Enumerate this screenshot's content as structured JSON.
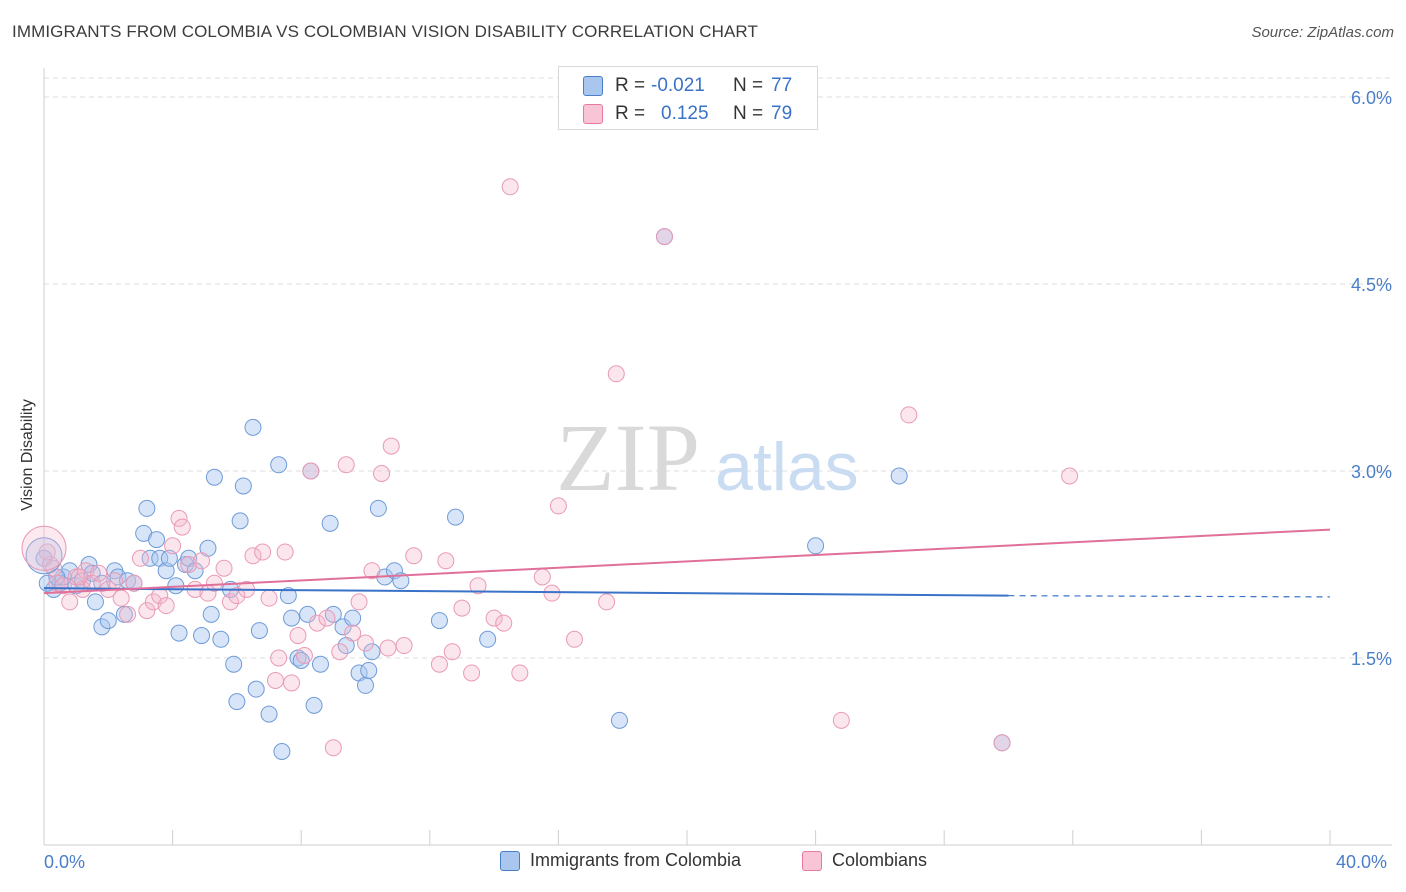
{
  "title": "IMMIGRANTS FROM COLOMBIA VS COLOMBIAN VISION DISABILITY CORRELATION CHART",
  "source": "Source: ZipAtlas.com",
  "watermark": {
    "zip": "ZIP",
    "atlas": "atlas"
  },
  "colors": {
    "blue": "#4a7ec9",
    "blue_fill": "#a9c6ef",
    "pink": "#e87aa0",
    "pink_fill": "#f4b8cc",
    "grid": "#dddddd"
  },
  "legend_top": {
    "rows": [
      {
        "r_label": "R =",
        "r_value": "-0.021",
        "n_label": "N =",
        "n_value": "77"
      },
      {
        "r_label": "R =",
        "r_value": "0.125",
        "n_label": "N =",
        "n_value": "79"
      }
    ]
  },
  "legend_bottom": {
    "series1": "Immigrants from Colombia",
    "series2": "Colombians"
  },
  "x_axis": {
    "min_label": "0.0%",
    "max_label": "40.0%"
  },
  "chart_data": {
    "type": "scatter",
    "title": "IMMIGRANTS FROM COLOMBIA VS COLOMBIAN VISION DISABILITY CORRELATION CHART",
    "xlabel": "",
    "ylabel": "Vision Disability",
    "xlim": [
      0,
      40
    ],
    "ylim": [
      0,
      6.2
    ],
    "y_ticks": [
      1.5,
      3.0,
      4.5,
      6.0
    ],
    "y_tick_labels": [
      "1.5%",
      "3.0%",
      "4.5%",
      "6.0%"
    ],
    "grid": true,
    "series": [
      {
        "name": "Immigrants from Colombia",
        "color": "#4a7ec9",
        "trend": {
          "x": [
            0,
            30
          ],
          "y": [
            2.06,
            2.0
          ],
          "dashed_to": 40,
          "dashed_y": 1.99
        },
        "points": [
          [
            0.3,
            2.05
          ],
          [
            0.5,
            2.1
          ],
          [
            0.6,
            2.15
          ],
          [
            0.8,
            2.2
          ],
          [
            1.0,
            2.08
          ],
          [
            1.2,
            2.12
          ],
          [
            1.4,
            2.25
          ],
          [
            1.5,
            2.18
          ],
          [
            1.6,
            1.95
          ],
          [
            1.8,
            2.1
          ],
          [
            1.8,
            1.75
          ],
          [
            2.0,
            1.8
          ],
          [
            2.2,
            2.2
          ],
          [
            2.3,
            2.15
          ],
          [
            2.5,
            1.85
          ],
          [
            2.6,
            2.12
          ],
          [
            2.8,
            2.1
          ],
          [
            3.1,
            2.5
          ],
          [
            3.2,
            2.7
          ],
          [
            3.3,
            2.3
          ],
          [
            3.5,
            2.45
          ],
          [
            3.6,
            2.3
          ],
          [
            3.8,
            2.2
          ],
          [
            3.9,
            2.3
          ],
          [
            4.1,
            2.08
          ],
          [
            4.2,
            1.7
          ],
          [
            4.4,
            2.25
          ],
          [
            4.5,
            2.3
          ],
          [
            4.7,
            2.2
          ],
          [
            4.9,
            1.68
          ],
          [
            5.1,
            2.38
          ],
          [
            5.2,
            1.85
          ],
          [
            5.3,
            2.95
          ],
          [
            5.5,
            1.65
          ],
          [
            5.8,
            2.05
          ],
          [
            5.9,
            1.45
          ],
          [
            6.0,
            1.15
          ],
          [
            6.1,
            2.6
          ],
          [
            6.2,
            2.88
          ],
          [
            6.5,
            3.35
          ],
          [
            6.6,
            1.25
          ],
          [
            6.7,
            1.72
          ],
          [
            7.0,
            1.05
          ],
          [
            7.3,
            3.05
          ],
          [
            7.4,
            0.75
          ],
          [
            7.6,
            2.0
          ],
          [
            7.7,
            1.82
          ],
          [
            7.9,
            1.5
          ],
          [
            8.0,
            1.48
          ],
          [
            8.2,
            1.85
          ],
          [
            8.3,
            3.0
          ],
          [
            8.4,
            1.12
          ],
          [
            8.6,
            1.45
          ],
          [
            8.9,
            2.58
          ],
          [
            9.0,
            1.85
          ],
          [
            9.3,
            1.75
          ],
          [
            9.4,
            1.6
          ],
          [
            9.6,
            1.82
          ],
          [
            9.8,
            1.38
          ],
          [
            10.0,
            1.28
          ],
          [
            10.1,
            1.4
          ],
          [
            10.2,
            1.55
          ],
          [
            10.4,
            2.7
          ],
          [
            10.6,
            2.15
          ],
          [
            10.9,
            2.2
          ],
          [
            11.1,
            2.12
          ],
          [
            12.3,
            1.8
          ],
          [
            12.8,
            2.63
          ],
          [
            13.8,
            1.65
          ],
          [
            17.9,
            1.0
          ],
          [
            19.3,
            4.88
          ],
          [
            24.0,
            2.4
          ],
          [
            26.6,
            2.96
          ],
          [
            29.8,
            0.82
          ],
          [
            0.0,
            2.3
          ],
          [
            0.1,
            2.1
          ],
          [
            0.4,
            2.15
          ]
        ]
      },
      {
        "name": "Colombians",
        "color": "#e87aa0",
        "trend": {
          "x": [
            0,
            40
          ],
          "y": [
            2.02,
            2.53
          ]
        },
        "points": [
          [
            0.2,
            2.25
          ],
          [
            0.4,
            2.1
          ],
          [
            0.6,
            2.08
          ],
          [
            0.8,
            1.95
          ],
          [
            1.0,
            2.15
          ],
          [
            1.2,
            2.05
          ],
          [
            1.3,
            2.2
          ],
          [
            1.5,
            2.1
          ],
          [
            1.7,
            2.18
          ],
          [
            2.0,
            2.05
          ],
          [
            2.2,
            2.12
          ],
          [
            2.4,
            1.98
          ],
          [
            2.6,
            1.85
          ],
          [
            2.8,
            2.1
          ],
          [
            3.0,
            2.3
          ],
          [
            3.2,
            1.88
          ],
          [
            3.4,
            1.95
          ],
          [
            3.6,
            2.0
          ],
          [
            3.8,
            1.92
          ],
          [
            4.0,
            2.4
          ],
          [
            4.2,
            2.62
          ],
          [
            4.3,
            2.55
          ],
          [
            4.5,
            2.25
          ],
          [
            4.7,
            2.05
          ],
          [
            4.9,
            2.28
          ],
          [
            5.1,
            2.02
          ],
          [
            5.3,
            2.1
          ],
          [
            5.6,
            2.22
          ],
          [
            5.8,
            1.95
          ],
          [
            6.0,
            2.0
          ],
          [
            6.3,
            2.05
          ],
          [
            6.5,
            2.32
          ],
          [
            6.8,
            2.35
          ],
          [
            7.0,
            1.98
          ],
          [
            7.3,
            1.5
          ],
          [
            7.5,
            2.35
          ],
          [
            7.7,
            1.3
          ],
          [
            7.9,
            1.68
          ],
          [
            8.1,
            1.52
          ],
          [
            8.3,
            3.0
          ],
          [
            8.5,
            1.78
          ],
          [
            8.8,
            1.82
          ],
          [
            9.0,
            0.78
          ],
          [
            9.2,
            1.55
          ],
          [
            9.4,
            3.05
          ],
          [
            9.6,
            1.7
          ],
          [
            9.8,
            1.95
          ],
          [
            10.0,
            1.62
          ],
          [
            10.2,
            2.2
          ],
          [
            10.5,
            2.98
          ],
          [
            10.7,
            1.58
          ],
          [
            11.2,
            1.6
          ],
          [
            11.5,
            2.32
          ],
          [
            12.3,
            1.45
          ],
          [
            12.7,
            1.55
          ],
          [
            13.0,
            1.9
          ],
          [
            13.3,
            1.38
          ],
          [
            13.5,
            2.08
          ],
          [
            14.0,
            1.82
          ],
          [
            14.3,
            1.78
          ],
          [
            14.5,
            5.28
          ],
          [
            14.8,
            1.38
          ],
          [
            15.5,
            2.15
          ],
          [
            15.8,
            2.02
          ],
          [
            16.0,
            2.72
          ],
          [
            16.5,
            1.65
          ],
          [
            17.5,
            1.95
          ],
          [
            17.8,
            3.78
          ],
          [
            24.8,
            1.0
          ],
          [
            26.9,
            3.45
          ],
          [
            31.9,
            2.96
          ],
          [
            0.1,
            2.35
          ],
          [
            0.3,
            2.22
          ],
          [
            1.1,
            2.15
          ],
          [
            7.2,
            1.32
          ],
          [
            10.8,
            3.2
          ],
          [
            12.5,
            2.28
          ],
          [
            19.3,
            4.88
          ],
          [
            29.8,
            0.82
          ]
        ]
      }
    ]
  }
}
